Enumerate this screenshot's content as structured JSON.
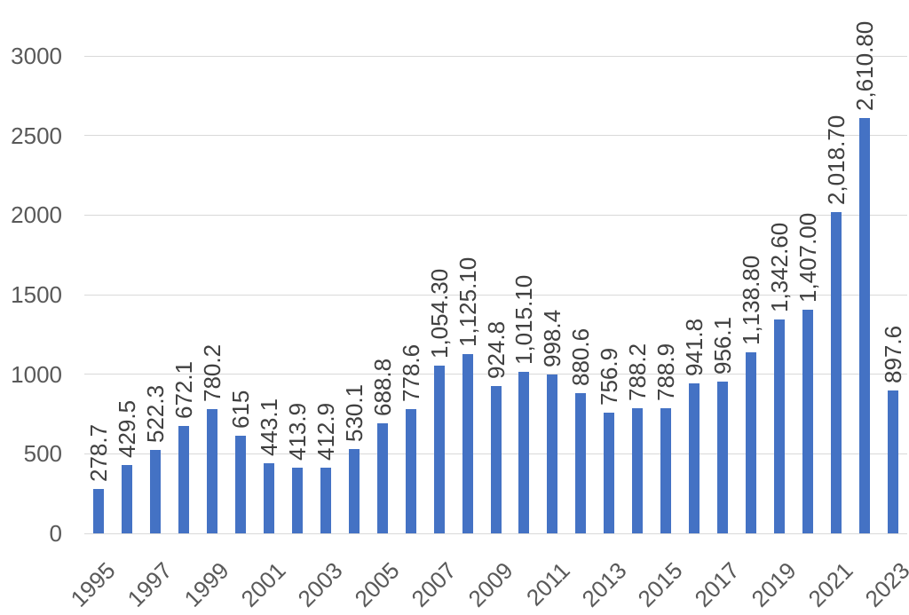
{
  "chart_data": {
    "type": "bar",
    "categories": [
      "1995",
      "1996",
      "1997",
      "1998",
      "1999",
      "2000",
      "2001",
      "2002",
      "2003",
      "2004",
      "2005",
      "2006",
      "2007",
      "2008",
      "2009",
      "2010",
      "2011",
      "2012",
      "2013",
      "2014",
      "2015",
      "2016",
      "2017",
      "2018",
      "2019",
      "2020",
      "2021",
      "2022",
      "2023"
    ],
    "values": [
      278.7,
      429.5,
      522.3,
      672.1,
      780.2,
      615,
      443.1,
      413.9,
      412.9,
      530.1,
      688.8,
      778.6,
      1054.3,
      1125.1,
      924.8,
      1015.1,
      998.4,
      880.6,
      756.9,
      788.2,
      788.9,
      941.8,
      956.1,
      1138.8,
      1342.6,
      1407.0,
      2018.7,
      2610.8,
      897.6
    ],
    "data_labels": [
      "278.7",
      "429.5",
      "522.3",
      "672.1",
      "780.2",
      "615",
      "443.1",
      "413.9",
      "412.9",
      "530.1",
      "688.8",
      "778.6",
      "1,054.30",
      "1,125.10",
      "924.8",
      "1,015.10",
      "998.4",
      "880.6",
      "756.9",
      "788.2",
      "788.9",
      "941.8",
      "956.1",
      "1,138.80",
      "1,342.60",
      "1,407.00",
      "2,018.70",
      "2,610.80",
      "897.6"
    ],
    "x_tick_labels": [
      "1995",
      "1997",
      "1999",
      "2001",
      "2003",
      "2005",
      "2007",
      "2009",
      "2011",
      "2013",
      "2015",
      "2017",
      "2019",
      "2021",
      "2023"
    ],
    "x_tick_step": 2,
    "y_ticks": [
      0,
      500,
      1000,
      1500,
      2000,
      2500,
      3000
    ],
    "y_tick_labels": [
      "0",
      "500",
      "1000",
      "1500",
      "2000",
      "2500",
      "3000"
    ],
    "ylim": [
      0,
      3000
    ],
    "grid": "horizontal",
    "legend": "none",
    "colors": {
      "bar": "#4472C4",
      "gridline": "#D9D9D9",
      "axis_text": "#595959",
      "data_label_text": "#404040",
      "background": "#FFFFFF"
    }
  }
}
